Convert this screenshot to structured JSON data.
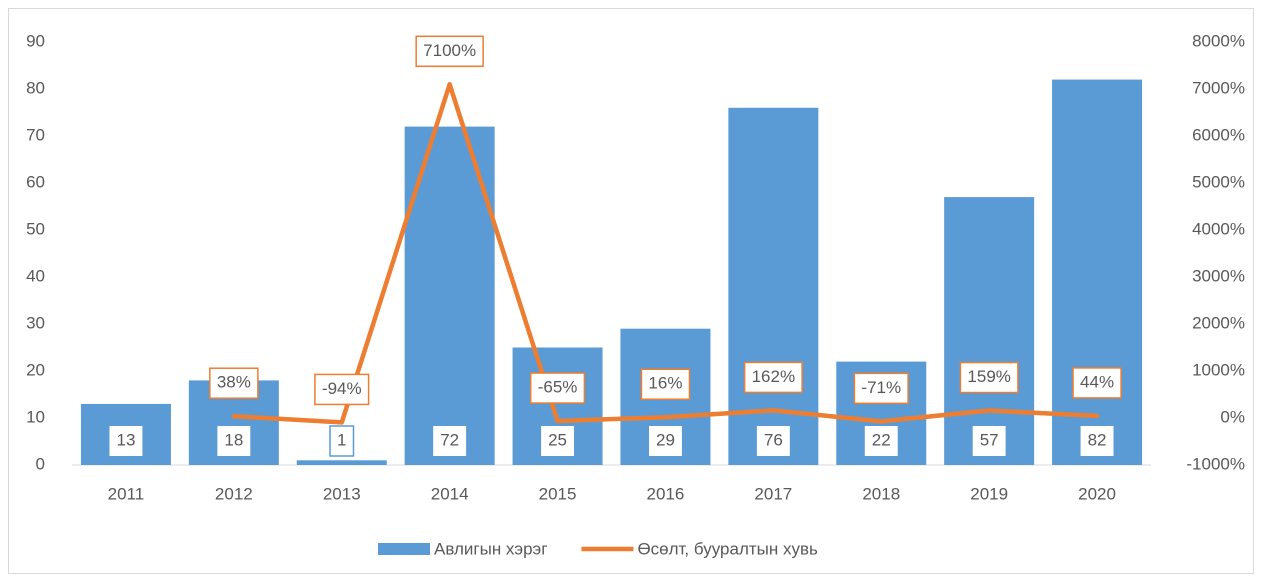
{
  "chart_data": {
    "type": "bar",
    "categories": [
      "2011",
      "2012",
      "2013",
      "2014",
      "2015",
      "2016",
      "2017",
      "2018",
      "2019",
      "2020"
    ],
    "series": [
      {
        "name": "Авлигын хэрэг",
        "type": "bar",
        "color": "#5b9bd5",
        "values": [
          13,
          18,
          1,
          72,
          25,
          29,
          76,
          22,
          57,
          82
        ]
      },
      {
        "name": "Өсөлт, бууралтын хувь",
        "type": "line",
        "axis": "y2",
        "color": "#ed7d31",
        "values": [
          null,
          38,
          -94,
          7100,
          -65,
          16,
          162,
          -71,
          159,
          44
        ],
        "value_labels": [
          null,
          "38%",
          "-94%",
          "7100%",
          "-65%",
          "16%",
          "162%",
          "-71%",
          "159%",
          "44%"
        ]
      }
    ],
    "ylim": [
      0,
      90
    ],
    "yticks": [
      0,
      10,
      20,
      30,
      40,
      50,
      60,
      70,
      80,
      90
    ],
    "y2lim": [
      -1000,
      8000
    ],
    "y2ticks": [
      {
        "value": -1000,
        "label": "-1000%"
      },
      {
        "value": 0,
        "label": "0%"
      },
      {
        "value": 1000,
        "label": "1000%"
      },
      {
        "value": 2000,
        "label": "2000%"
      },
      {
        "value": 3000,
        "label": "3000%"
      },
      {
        "value": 4000,
        "label": "4000%"
      },
      {
        "value": 5000,
        "label": "5000%"
      },
      {
        "value": 6000,
        "label": "6000%"
      },
      {
        "value": 7000,
        "label": "7000%"
      },
      {
        "value": 8000,
        "label": "8000%"
      }
    ],
    "legend": "bottom"
  }
}
